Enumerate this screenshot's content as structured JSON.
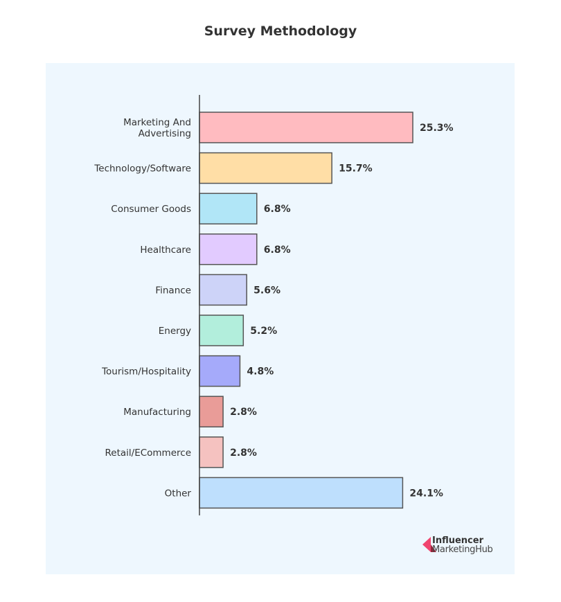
{
  "chart_data": {
    "type": "bar",
    "orientation": "horizontal",
    "title": "Survey Methodology",
    "categories": [
      [
        "Marketing And",
        "Advertising"
      ],
      [
        "Technology/Software"
      ],
      [
        "Consumer Goods"
      ],
      [
        "Healthcare"
      ],
      [
        "Finance"
      ],
      [
        "Energy"
      ],
      [
        "Tourism/Hospitality"
      ],
      [
        "Manufacturing"
      ],
      [
        "Retail/ECommerce"
      ],
      [
        "Other"
      ]
    ],
    "values": [
      25.3,
      15.7,
      6.8,
      6.8,
      5.6,
      5.2,
      4.8,
      2.8,
      2.8,
      24.1
    ],
    "value_labels": [
      "25.3%",
      "15.7%",
      "6.8%",
      "6.8%",
      "5.6%",
      "5.2%",
      "4.8%",
      "2.8%",
      "2.8%",
      "24.1%"
    ],
    "colors": [
      "#ffbbc0",
      "#ffdea6",
      "#b1e6f7",
      "#e2cbff",
      "#cdd3f8",
      "#b2eedc",
      "#a5aafa",
      "#e99c98",
      "#f5c2c0",
      "#bedffd"
    ],
    "xlabel": "",
    "ylabel": "",
    "grid": false
  },
  "logo": {
    "line1": "Influencer",
    "line2": "MarketingHub"
  }
}
